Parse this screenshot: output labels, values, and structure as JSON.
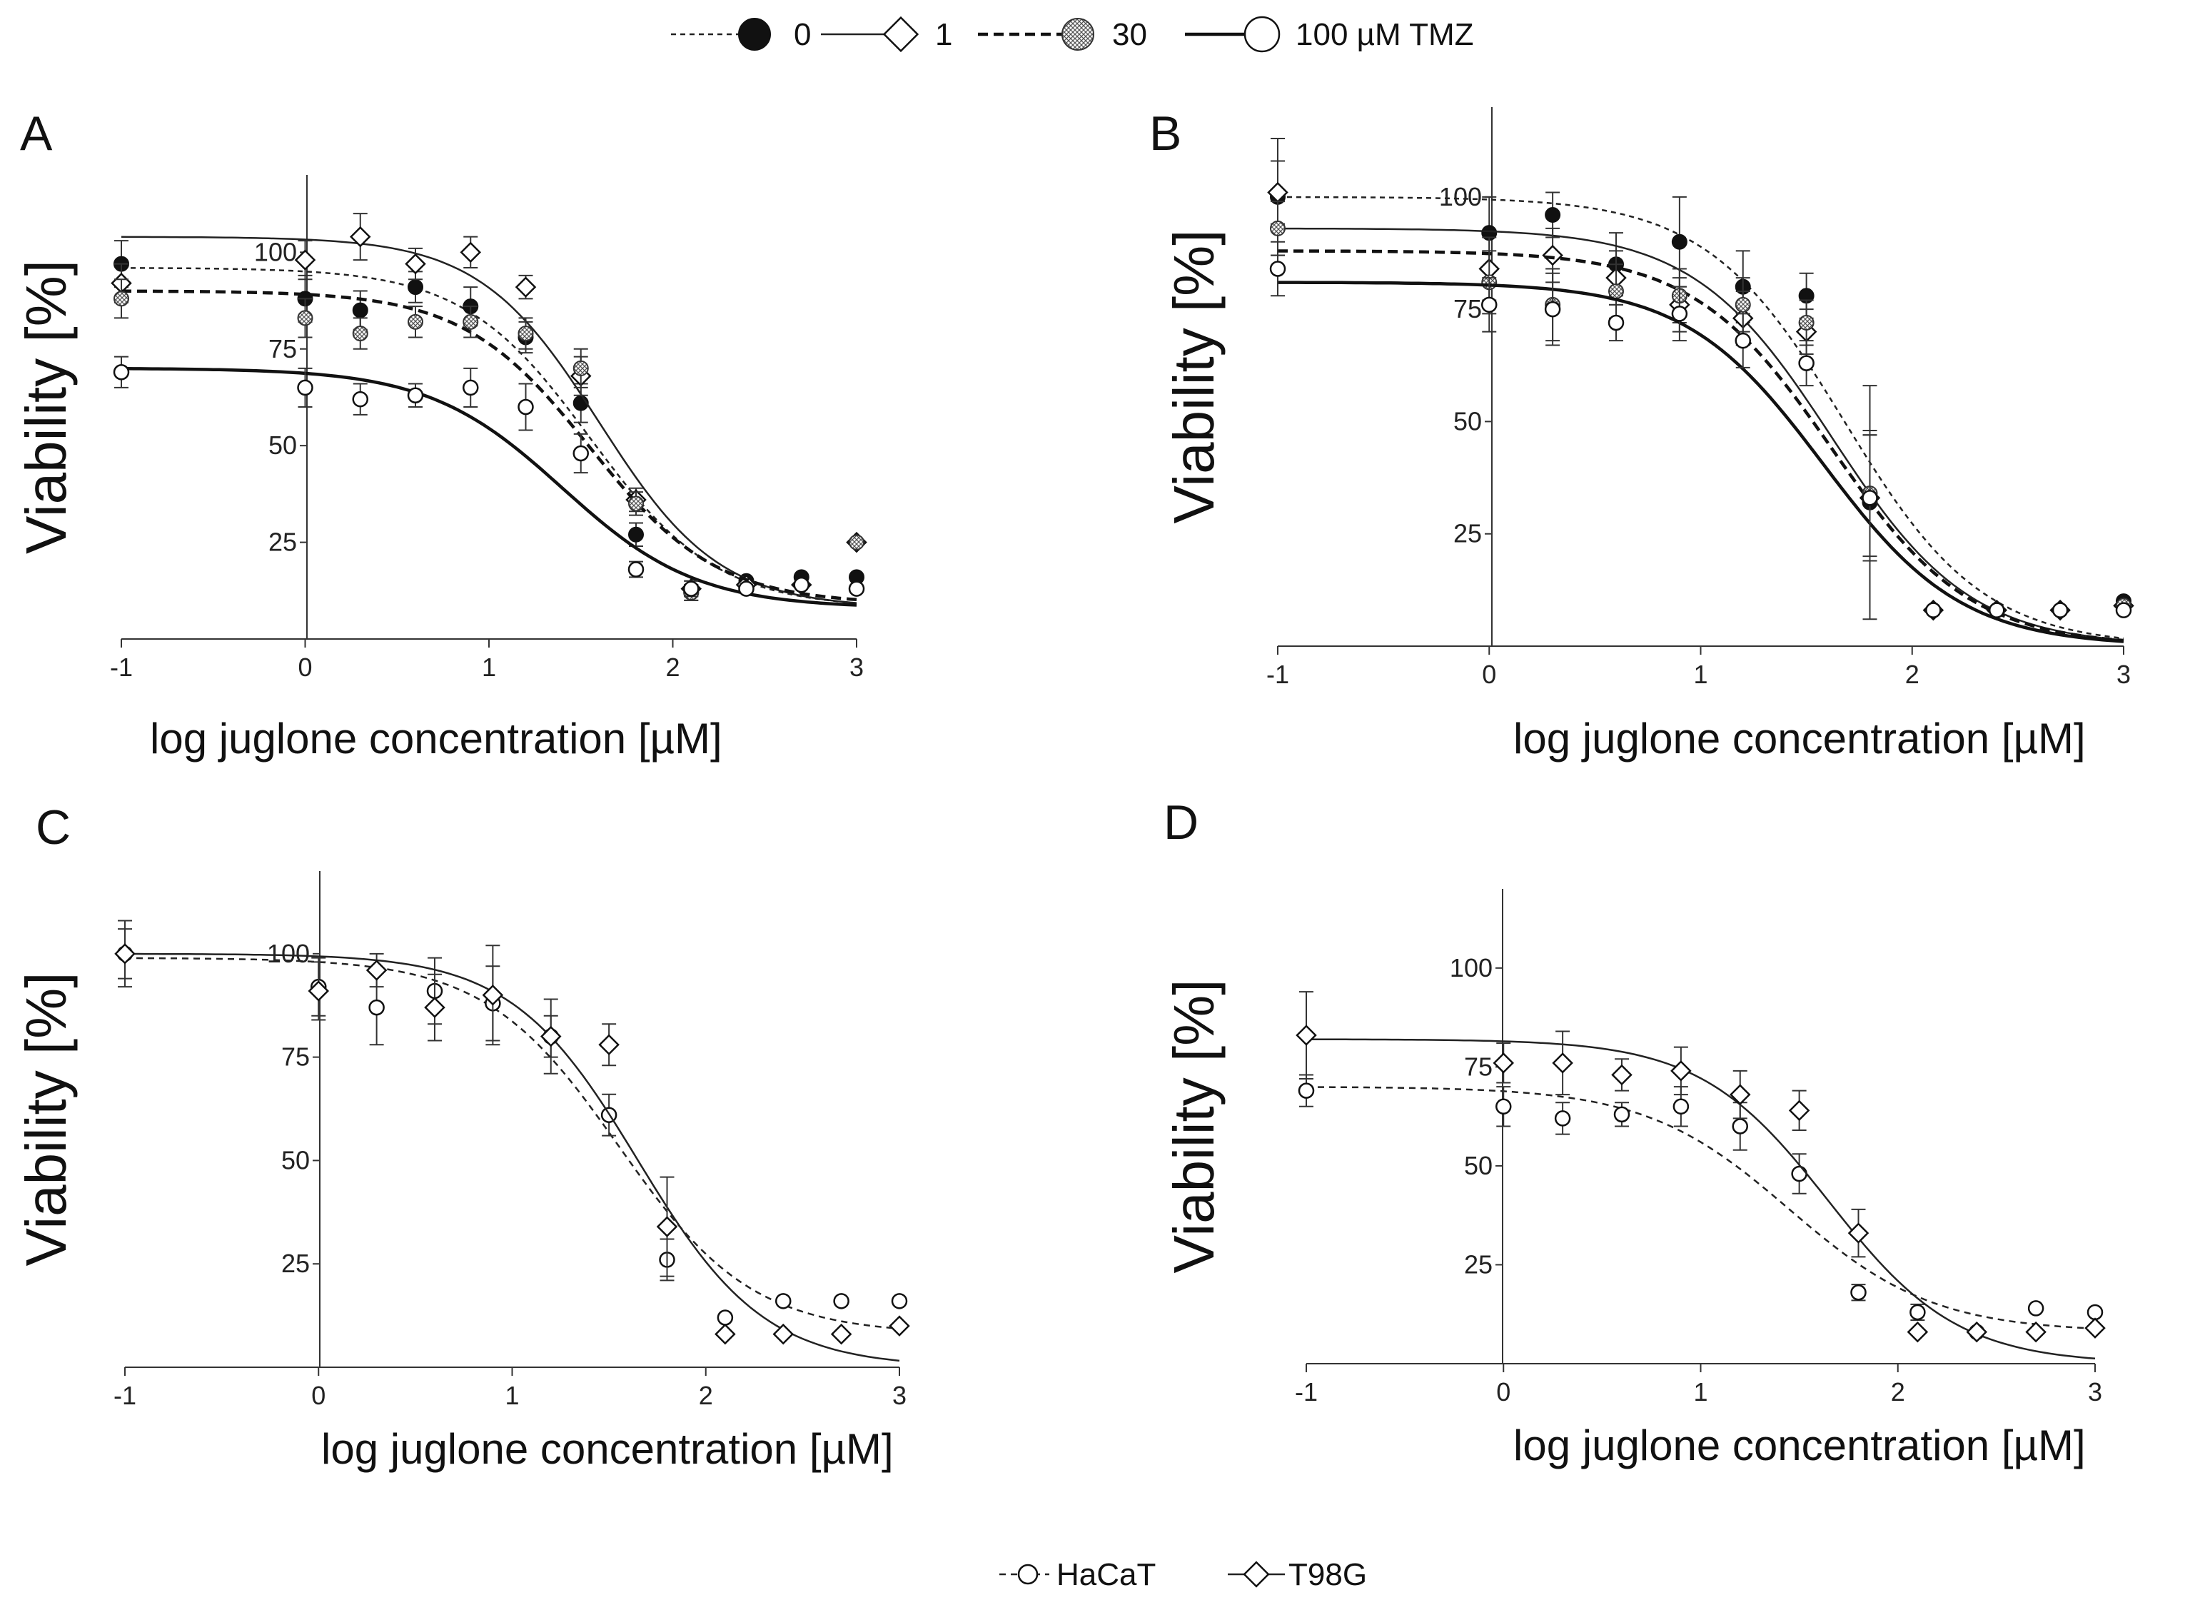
{
  "top_legend": {
    "entries": [
      {
        "label": "0",
        "line": "thin-dashed",
        "marker": "filled-circle"
      },
      {
        "label": "1",
        "line": "solid",
        "marker": "open-diamond"
      },
      {
        "label": "30",
        "line": "bold-dashed",
        "marker": "hatched-circle"
      },
      {
        "label": "100 µM TMZ",
        "line": "bold-solid",
        "marker": "open-circle"
      }
    ]
  },
  "bottom_legend": {
    "entries": [
      {
        "label": "HaCaT",
        "line": "dashed",
        "marker": "open-circle"
      },
      {
        "label": "T98G",
        "line": "solid",
        "marker": "open-diamond"
      }
    ]
  },
  "chart_data": [
    {
      "panel": "A",
      "type": "line",
      "xlabel": "log juglone concentration [µM]",
      "ylabel": "Viability [%]",
      "xticks": [
        -1,
        0,
        1,
        2,
        3
      ],
      "yticks": [
        25,
        50,
        75,
        100
      ],
      "xlim": [
        -1,
        3
      ],
      "ylim": [
        0,
        120
      ],
      "series": [
        {
          "name": "0",
          "top": 96,
          "bottom": 8,
          "ec50": 1.55,
          "hill": 0.9,
          "x": [
            -1,
            0,
            0.3,
            0.6,
            0.9,
            1.2,
            1.5,
            1.8,
            2.1,
            2.4,
            2.7,
            3
          ],
          "y": [
            97,
            88,
            85,
            91,
            86,
            78,
            61,
            27,
            12,
            15,
            16,
            16
          ],
          "err": [
            6,
            6,
            5,
            4,
            5,
            4,
            5,
            3,
            2,
            1,
            1,
            1
          ]
        },
        {
          "name": "1",
          "top": 104,
          "bottom": 8,
          "ec50": 1.6,
          "hill": 0.95,
          "x": [
            -1,
            0,
            0.3,
            0.6,
            0.9,
            1.2,
            1.5,
            1.8,
            2.1,
            2.4,
            2.7,
            3
          ],
          "y": [
            92,
            98,
            104,
            97,
            100,
            91,
            68,
            36,
            13,
            14,
            14,
            25
          ],
          "err": [
            5,
            5,
            6,
            4,
            4,
            3,
            5,
            3,
            2,
            1,
            1,
            1
          ]
        },
        {
          "name": "30",
          "top": 90,
          "bottom": 9,
          "ec50": 1.55,
          "hill": 0.9,
          "x": [
            -1,
            0,
            0.3,
            0.6,
            0.9,
            1.2,
            1.5,
            1.8,
            2.1,
            2.4,
            2.7,
            3
          ],
          "y": [
            88,
            83,
            79,
            82,
            82,
            79,
            70,
            35,
            12,
            13,
            14,
            25
          ],
          "err": [
            5,
            5,
            4,
            4,
            4,
            4,
            5,
            3,
            2,
            1,
            1,
            1
          ]
        },
        {
          "name": "100 µM TMZ",
          "top": 70,
          "bottom": 8,
          "ec50": 1.4,
          "hill": 0.85,
          "x": [
            -1,
            0,
            0.3,
            0.6,
            0.9,
            1.2,
            1.5,
            1.8,
            2.1,
            2.4,
            2.7,
            3
          ],
          "y": [
            69,
            65,
            62,
            63,
            65,
            60,
            48,
            18,
            13,
            13,
            14,
            13
          ],
          "err": [
            4,
            5,
            4,
            3,
            5,
            6,
            5,
            2,
            2,
            1,
            1,
            1
          ]
        }
      ]
    },
    {
      "panel": "B",
      "type": "line",
      "xlabel": "log juglone concentration [µM]",
      "ylabel": "Viability [%]",
      "xticks": [
        -1,
        0,
        1,
        2,
        3
      ],
      "yticks": [
        25,
        50,
        75,
        100
      ],
      "xlim": [
        -1,
        3
      ],
      "ylim": [
        0,
        120
      ],
      "series": [
        {
          "name": "0",
          "top": 100,
          "bottom": 0,
          "ec50": 1.68,
          "hill": 0.95,
          "x": [
            -1,
            0,
            0.3,
            0.6,
            0.9,
            1.2,
            1.5,
            1.8,
            2.1,
            2.4,
            2.7,
            3
          ],
          "y": [
            100,
            92,
            96,
            85,
            90,
            80,
            78,
            32,
            8,
            8,
            8,
            10
          ],
          "err": [
            13,
            8,
            5,
            7,
            10,
            8,
            5,
            26,
            1,
            1,
            1,
            1
          ]
        },
        {
          "name": "1",
          "top": 93,
          "bottom": 0,
          "ec50": 1.62,
          "hill": 0.95,
          "x": [
            -1,
            0,
            0.3,
            0.6,
            0.9,
            1.2,
            1.5,
            1.8,
            2.1,
            2.4,
            2.7,
            3
          ],
          "y": [
            101,
            84,
            87,
            82,
            76,
            73,
            70,
            33,
            8,
            8,
            8,
            9
          ],
          "err": [
            7,
            7,
            6,
            6,
            6,
            6,
            5,
            14,
            1,
            1,
            1,
            1
          ]
        },
        {
          "name": "30",
          "top": 88,
          "bottom": 0,
          "ec50": 1.62,
          "hill": 0.95,
          "x": [
            -1,
            0,
            0.3,
            0.6,
            0.9,
            1.2,
            1.5,
            1.8,
            2.1,
            2.4,
            2.7,
            3
          ],
          "y": [
            93,
            81,
            76,
            79,
            78,
            76,
            72,
            34,
            8,
            8,
            8,
            9
          ],
          "err": [
            6,
            7,
            8,
            6,
            6,
            6,
            5,
            14,
            1,
            1,
            1,
            1
          ]
        },
        {
          "name": "100 µM TMZ",
          "top": 81,
          "bottom": 0,
          "ec50": 1.58,
          "hill": 0.95,
          "x": [
            -1,
            0,
            0.3,
            0.6,
            0.9,
            1.2,
            1.5,
            1.8,
            2.1,
            2.4,
            2.7,
            3
          ],
          "y": [
            84,
            76,
            75,
            72,
            74,
            68,
            63,
            33,
            8,
            8,
            8,
            8
          ],
          "err": [
            6,
            6,
            8,
            4,
            6,
            6,
            5,
            14,
            1,
            1,
            1,
            1
          ]
        }
      ]
    },
    {
      "panel": "C",
      "type": "line",
      "xlabel": "log juglone concentration [µM]",
      "ylabel": "Viability [%]",
      "xticks": [
        -1,
        0,
        1,
        2,
        3
      ],
      "yticks": [
        25,
        50,
        75,
        100
      ],
      "xlim": [
        -1,
        3
      ],
      "ylim": [
        0,
        120
      ],
      "series": [
        {
          "name": "HaCaT",
          "top": 99,
          "bottom": 8,
          "ec50": 1.55,
          "hill": 0.9,
          "x": [
            -1,
            0,
            0.3,
            0.6,
            0.9,
            1.2,
            1.5,
            1.8,
            2.1,
            2.4,
            2.7,
            3
          ],
          "y": [
            100,
            92,
            87,
            91,
            88,
            80,
            61,
            26,
            12,
            16,
            16,
            16
          ],
          "err": [
            6,
            7,
            9,
            8,
            9,
            5,
            5,
            5,
            1,
            1,
            1,
            1
          ]
        },
        {
          "name": "T98G",
          "top": 100,
          "bottom": 0,
          "ec50": 1.65,
          "hill": 0.95,
          "x": [
            -1,
            0,
            0.3,
            0.6,
            0.9,
            1.2,
            1.5,
            1.8,
            2.1,
            2.4,
            2.7,
            3
          ],
          "y": [
            100,
            91,
            96,
            87,
            90,
            80,
            78,
            34,
            8,
            8,
            8,
            10
          ],
          "err": [
            8,
            7,
            4,
            8,
            12,
            9,
            5,
            12,
            1,
            1,
            1,
            1
          ]
        }
      ]
    },
    {
      "panel": "D",
      "type": "line",
      "xlabel": "log juglone concentration [µM]",
      "ylabel": "Viability [%]",
      "xticks": [
        -1,
        0,
        1,
        2,
        3
      ],
      "yticks": [
        25,
        50,
        75,
        100
      ],
      "xlim": [
        -1,
        3
      ],
      "ylim": [
        0,
        120
      ],
      "series": [
        {
          "name": "HaCaT",
          "top": 70,
          "bottom": 8,
          "ec50": 1.45,
          "hill": 0.85,
          "x": [
            -1,
            0,
            0.3,
            0.6,
            0.9,
            1.2,
            1.5,
            1.8,
            2.1,
            2.4,
            2.7,
            3
          ],
          "y": [
            69,
            65,
            62,
            63,
            65,
            60,
            48,
            18,
            13,
            8,
            14,
            13
          ],
          "err": [
            4,
            5,
            4,
            3,
            5,
            6,
            5,
            2,
            2,
            1,
            1,
            1
          ]
        },
        {
          "name": "T98G",
          "top": 82,
          "bottom": 0,
          "ec50": 1.65,
          "hill": 0.95,
          "x": [
            -1,
            0,
            0.3,
            0.6,
            0.9,
            1.2,
            1.5,
            1.8,
            2.1,
            2.4,
            2.7,
            3
          ],
          "y": [
            83,
            76,
            76,
            73,
            74,
            68,
            64,
            33,
            8,
            8,
            8,
            9
          ],
          "err": [
            11,
            5,
            8,
            4,
            6,
            6,
            5,
            6,
            1,
            1,
            1,
            1
          ]
        }
      ]
    }
  ]
}
